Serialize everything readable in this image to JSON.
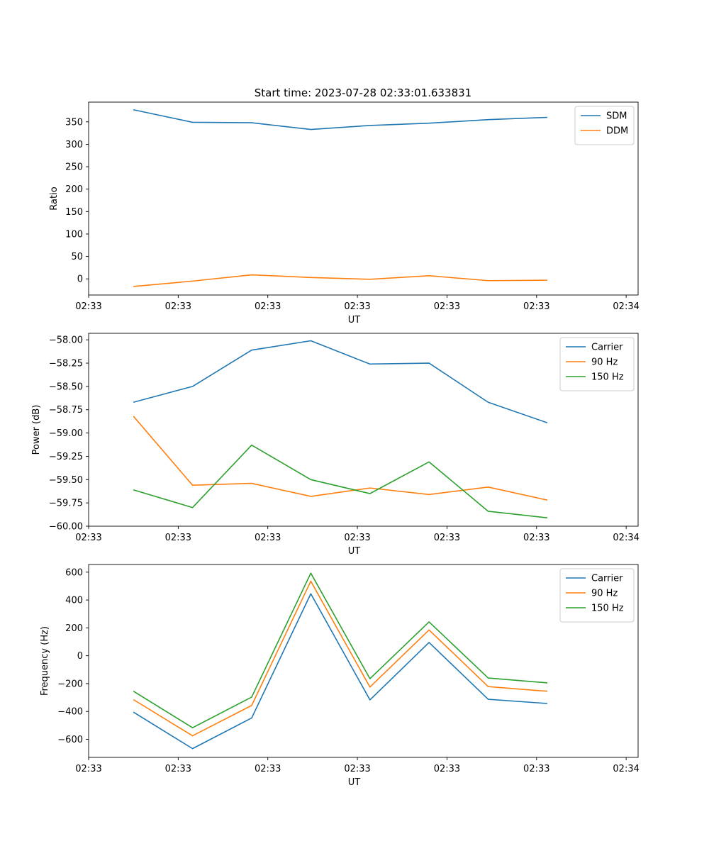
{
  "figure_title": "Start time: 2023-07-28 02:33:01.633831",
  "chart_data": [
    {
      "type": "line",
      "id": "ratio",
      "title": "Start time: 2023-07-28 02:33:01.633831",
      "xlabel": "UT",
      "ylabel": "Ratio",
      "xlim": [
        0,
        9.2
      ],
      "ylim": [
        -36,
        394
      ],
      "x_ticks": [
        {
          "value": 0.0,
          "label": "02:33"
        },
        {
          "value": 1.5,
          "label": "02:33"
        },
        {
          "value": 3.0,
          "label": "02:33"
        },
        {
          "value": 4.5,
          "label": "02:33"
        },
        {
          "value": 6.0,
          "label": "02:33"
        },
        {
          "value": 7.5,
          "label": "02:33"
        },
        {
          "value": 9.0,
          "label": "02:34"
        }
      ],
      "y_ticks": [
        0,
        50,
        100,
        150,
        200,
        250,
        300,
        350
      ],
      "y_tick_labels": [
        "0",
        "50",
        "100",
        "150",
        "200",
        "250",
        "300",
        "350"
      ],
      "x": [
        0.75,
        1.74,
        2.73,
        3.72,
        4.71,
        5.7,
        6.69,
        7.68
      ],
      "legend_position": "upper-right",
      "series": [
        {
          "name": "SDM",
          "color": "#1f77b4",
          "values": [
            377,
            349,
            348,
            333,
            342,
            347,
            355,
            360
          ]
        },
        {
          "name": "DDM",
          "color": "#ff7f0e",
          "values": [
            -17,
            -5,
            9,
            3,
            -1,
            7,
            -4,
            -3
          ]
        }
      ]
    },
    {
      "type": "line",
      "id": "power",
      "xlabel": "UT",
      "ylabel": "Power (dB)",
      "xlim": [
        0,
        9.2
      ],
      "ylim": [
        -60.0,
        -57.93
      ],
      "x_ticks": [
        {
          "value": 0.0,
          "label": "02:33"
        },
        {
          "value": 1.5,
          "label": "02:33"
        },
        {
          "value": 3.0,
          "label": "02:33"
        },
        {
          "value": 4.5,
          "label": "02:33"
        },
        {
          "value": 6.0,
          "label": "02:33"
        },
        {
          "value": 7.5,
          "label": "02:33"
        },
        {
          "value": 9.0,
          "label": "02:34"
        }
      ],
      "y_ticks": [
        -60.0,
        -59.75,
        -59.5,
        -59.25,
        -59.0,
        -58.75,
        -58.5,
        -58.25,
        -58.0
      ],
      "y_tick_labels": [
        "−60.00",
        "−59.75",
        "−59.50",
        "−59.25",
        "−59.00",
        "−58.75",
        "−58.50",
        "−58.25",
        "−58.00"
      ],
      "x": [
        0.75,
        1.74,
        2.73,
        3.72,
        4.71,
        5.7,
        6.69,
        7.68
      ],
      "legend_position": "upper-right",
      "series": [
        {
          "name": "Carrier",
          "color": "#1f77b4",
          "values": [
            -58.67,
            -58.5,
            -58.11,
            -58.01,
            -58.26,
            -58.25,
            -58.67,
            -58.89
          ]
        },
        {
          "name": "90 Hz",
          "color": "#ff7f0e",
          "values": [
            -58.82,
            -59.56,
            -59.54,
            -59.68,
            -59.59,
            -59.66,
            -59.58,
            -59.72
          ]
        },
        {
          "name": "150 Hz",
          "color": "#2ca02c",
          "values": [
            -59.61,
            -59.8,
            -59.13,
            -59.5,
            -59.65,
            -59.31,
            -59.84,
            -59.91
          ]
        }
      ]
    },
    {
      "type": "line",
      "id": "frequency",
      "xlabel": "UT",
      "ylabel": "Frequency (Hz)",
      "xlim": [
        0,
        9.2
      ],
      "ylim": [
        -730,
        655
      ],
      "x_ticks": [
        {
          "value": 0.0,
          "label": "02:33"
        },
        {
          "value": 1.5,
          "label": "02:33"
        },
        {
          "value": 3.0,
          "label": "02:33"
        },
        {
          "value": 4.5,
          "label": "02:33"
        },
        {
          "value": 6.0,
          "label": "02:33"
        },
        {
          "value": 7.5,
          "label": "02:33"
        },
        {
          "value": 9.0,
          "label": "02:34"
        }
      ],
      "y_ticks": [
        -600,
        -400,
        -200,
        0,
        200,
        400,
        600
      ],
      "y_tick_labels": [
        "−600",
        "−400",
        "−200",
        "0",
        "200",
        "400",
        "600"
      ],
      "x": [
        0.75,
        1.74,
        2.73,
        3.72,
        4.71,
        5.7,
        6.69,
        7.68
      ],
      "legend_position": "upper-right",
      "series": [
        {
          "name": "Carrier",
          "color": "#1f77b4",
          "values": [
            -405,
            -667,
            -447,
            445,
            -317,
            95,
            -313,
            -343
          ]
        },
        {
          "name": "90 Hz",
          "color": "#ff7f0e",
          "values": [
            -315,
            -575,
            -357,
            535,
            -225,
            185,
            -222,
            -255
          ]
        },
        {
          "name": "150 Hz",
          "color": "#2ca02c",
          "values": [
            -255,
            -517,
            -297,
            593,
            -165,
            243,
            -160,
            -195
          ]
        }
      ]
    }
  ]
}
